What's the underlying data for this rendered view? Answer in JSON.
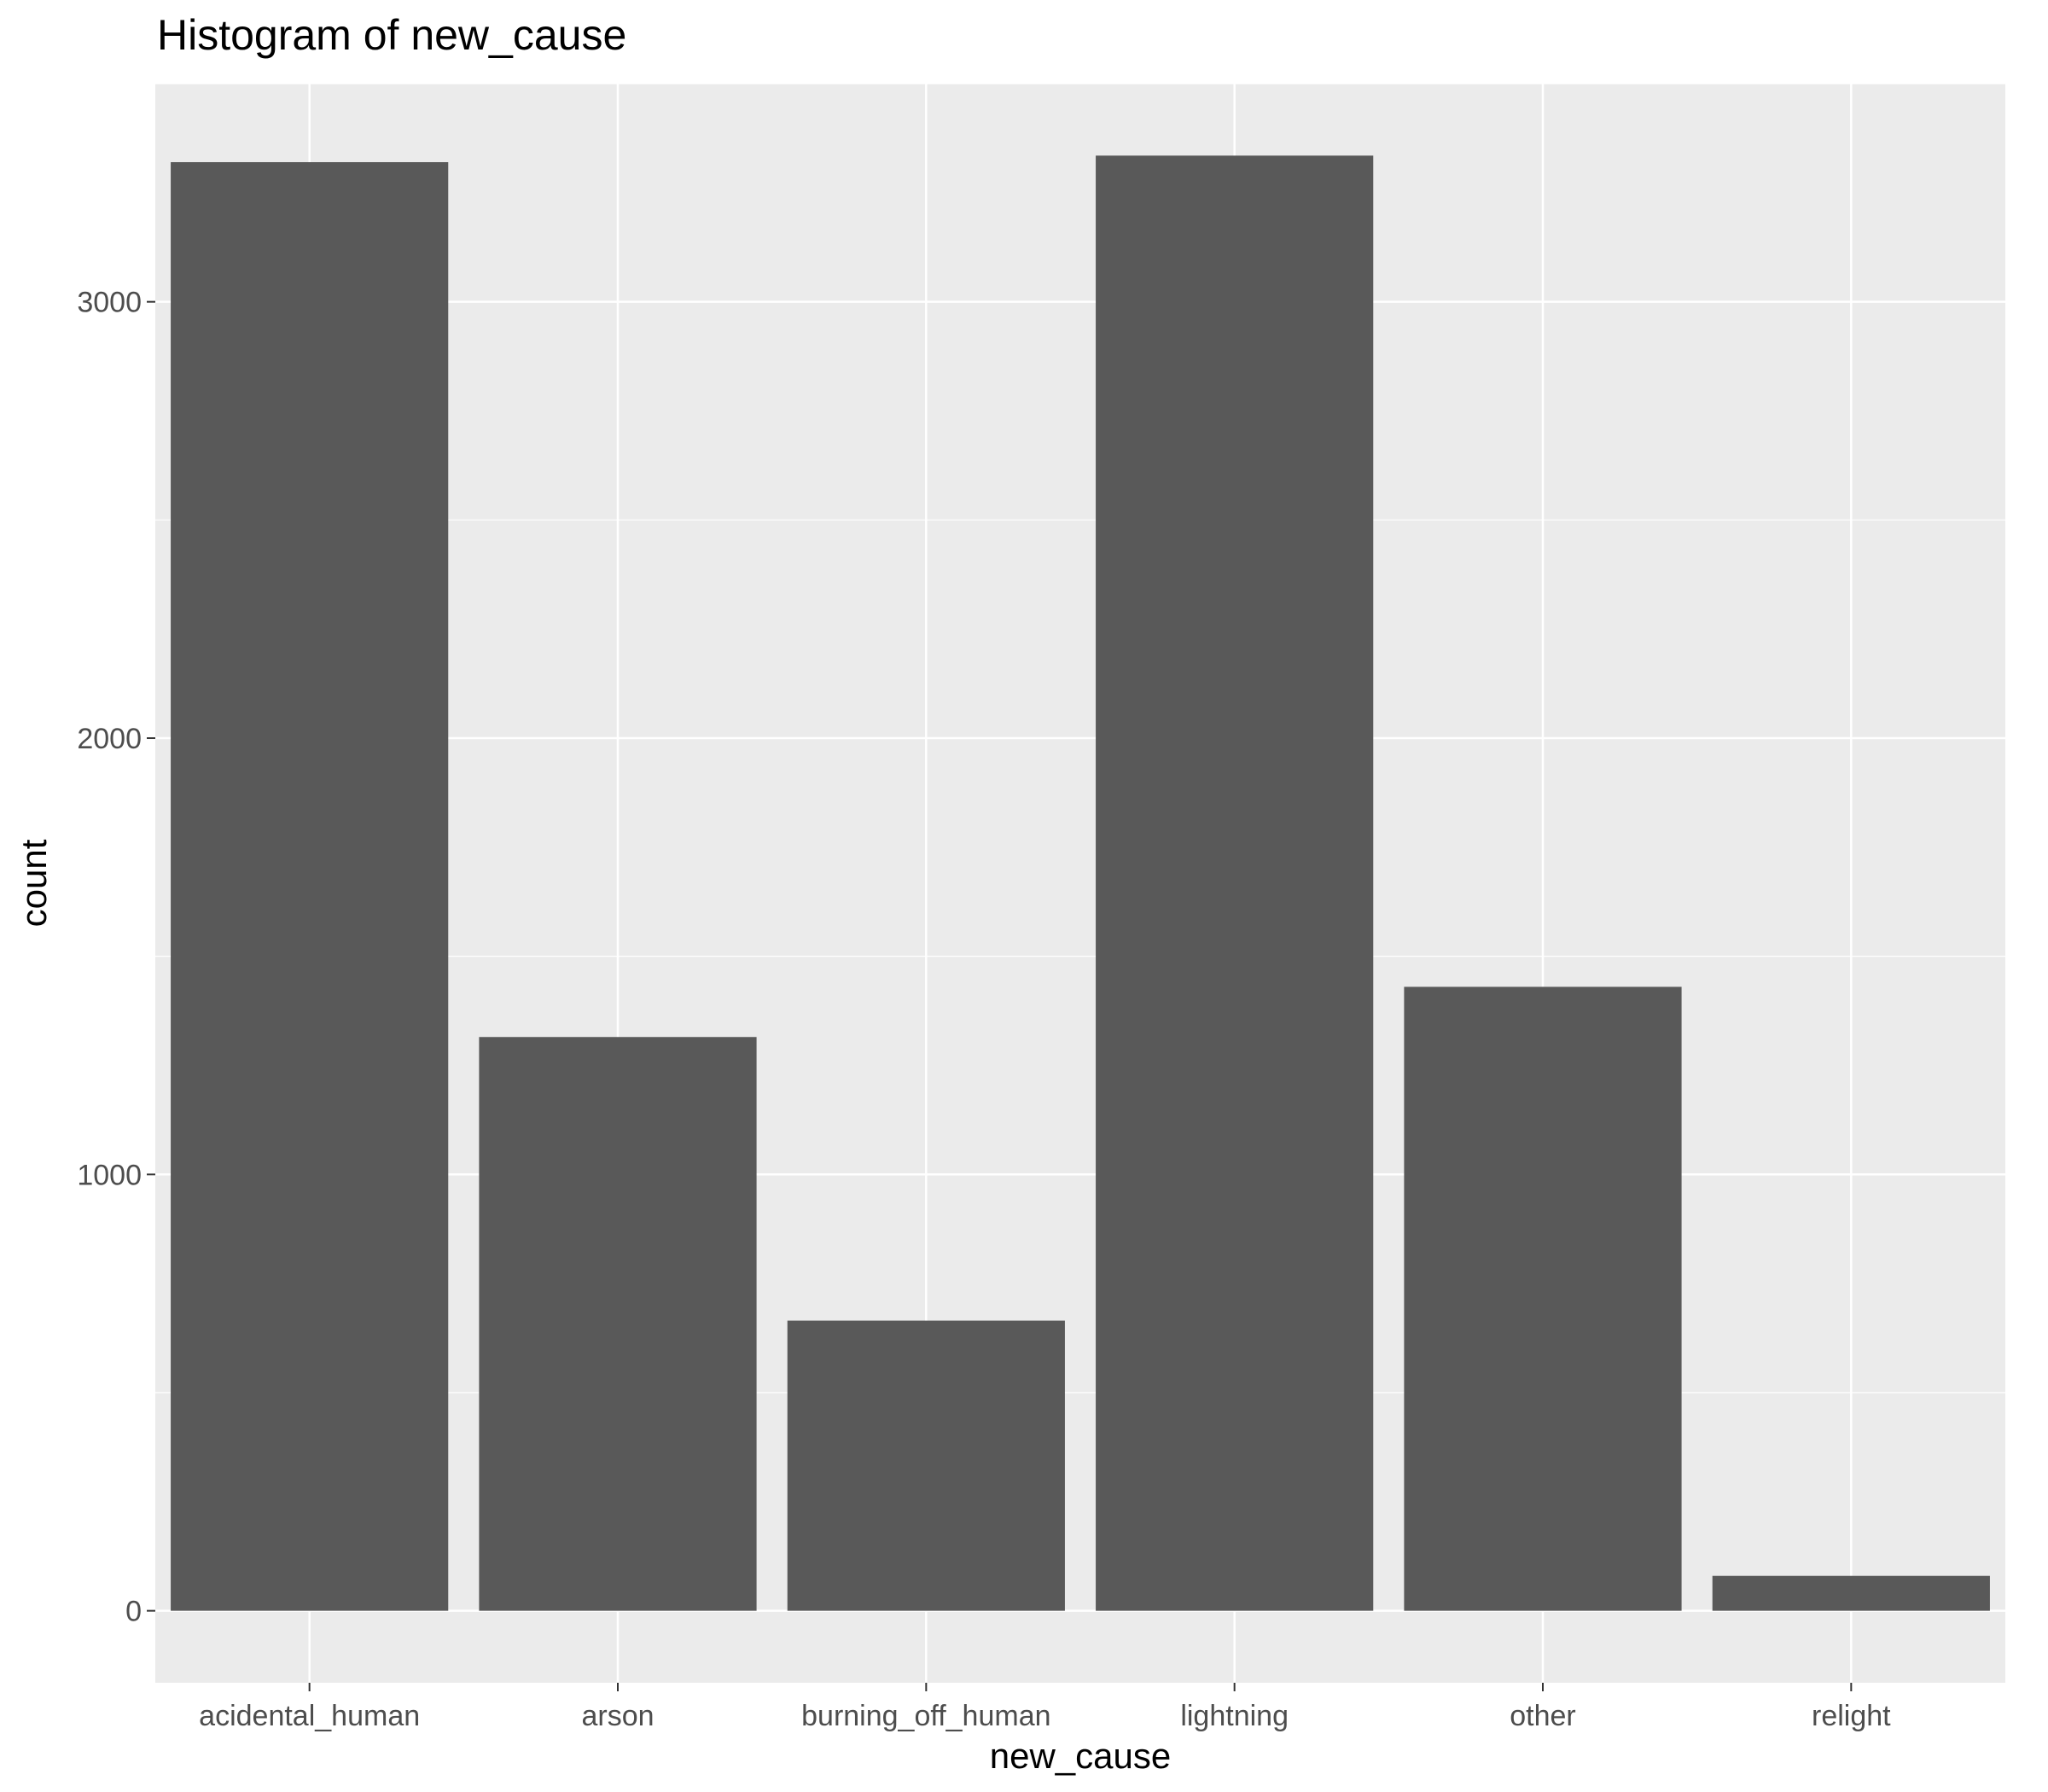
{
  "chart_data": {
    "type": "bar",
    "title": "Histogram of new_cause",
    "xlabel": "new_cause",
    "ylabel": "count",
    "categories": [
      "acidental_human",
      "arson",
      "burning_off_human",
      "lightning",
      "other",
      "relight"
    ],
    "values": [
      3320,
      1315,
      665,
      3335,
      1430,
      80
    ],
    "ylim": [
      -165,
      3500
    ],
    "yticks": [
      0,
      1000,
      2000,
      3000
    ],
    "grid": true,
    "colors": {
      "bar": "#595959",
      "panel": "#ebebeb",
      "grid": "#ffffff"
    }
  }
}
